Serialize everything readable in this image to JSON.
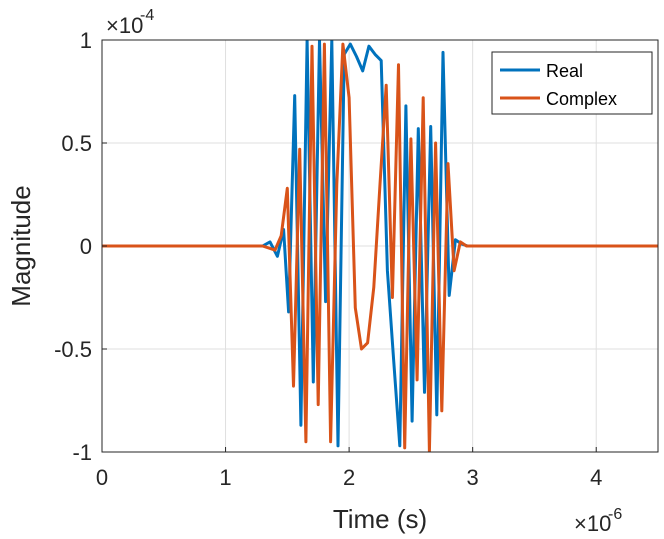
{
  "chart_data": {
    "type": "line",
    "title": "",
    "xlabel": "Time (s)",
    "ylabel": "Magnitude",
    "x_exponent_label": "×10",
    "x_exponent": "-6",
    "y_exponent_label": "×10",
    "y_exponent": "-4",
    "xlim": [
      0,
      4.5
    ],
    "ylim": [
      -1,
      1
    ],
    "x_tick_labels": [
      "0",
      "1",
      "2",
      "3",
      "4"
    ],
    "x_tick_values": [
      0,
      1,
      2,
      3,
      4
    ],
    "y_tick_labels": [
      "-1",
      "-0.5",
      "0",
      "0.5",
      "1"
    ],
    "y_tick_values": [
      -1,
      -0.5,
      0,
      0.5,
      1
    ],
    "grid": true,
    "legend_position": "top-right",
    "series": [
      {
        "name": "Real",
        "color": "#0072BD",
        "x": [
          0,
          1.3,
          1.36,
          1.42,
          1.47,
          1.51,
          1.56,
          1.61,
          1.66,
          1.71,
          1.76,
          1.81,
          1.86,
          1.91,
          1.96,
          2.01,
          2.06,
          2.11,
          2.16,
          2.21,
          2.26,
          2.31,
          2.36,
          2.41,
          2.46,
          2.51,
          2.56,
          2.61,
          2.66,
          2.71,
          2.76,
          2.81,
          2.86,
          2.91,
          2.96,
          3.05,
          4.5
        ],
        "values": [
          0,
          0,
          0.02,
          -0.05,
          0.08,
          -0.32,
          0.73,
          -0.87,
          1.0,
          -0.66,
          1.0,
          -0.27,
          1.0,
          -0.97,
          0.93,
          0.98,
          0.92,
          0.85,
          0.97,
          0.93,
          0.9,
          -0.12,
          -0.55,
          -0.97,
          0.68,
          -0.85,
          0.57,
          -0.71,
          0.58,
          -0.82,
          0.94,
          -0.24,
          0.03,
          0.01,
          0,
          0,
          0
        ]
      },
      {
        "name": "Complex",
        "color": "#D95319",
        "x": [
          0,
          1.3,
          1.4,
          1.45,
          1.5,
          1.55,
          1.6,
          1.65,
          1.7,
          1.75,
          1.8,
          1.85,
          1.9,
          1.95,
          2.0,
          2.05,
          2.1,
          2.15,
          2.2,
          2.25,
          2.3,
          2.35,
          2.4,
          2.45,
          2.5,
          2.55,
          2.6,
          2.65,
          2.7,
          2.75,
          2.8,
          2.85,
          2.9,
          2.95,
          3.0,
          4.5
        ],
        "values": [
          0,
          0,
          -0.02,
          0.05,
          0.28,
          -0.68,
          0.47,
          -0.95,
          0.97,
          -0.77,
          0.98,
          -0.95,
          0.3,
          0.98,
          0.72,
          -0.3,
          -0.5,
          -0.47,
          -0.2,
          0.3,
          0.78,
          -0.25,
          0.88,
          -0.98,
          0.52,
          -0.65,
          0.72,
          -1.0,
          0.5,
          -0.8,
          0.4,
          -0.12,
          0.02,
          0,
          0,
          0
        ]
      }
    ]
  }
}
